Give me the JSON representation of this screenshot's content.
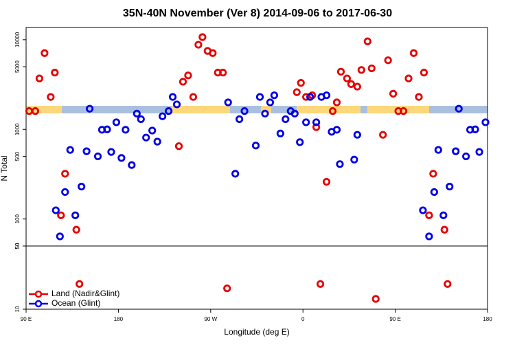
{
  "chart_data": [
    {
      "type": "scatter",
      "title": "35N-40N November (Ver 8)   2014-09-06 to 2017-06-30",
      "y_label": "N Total",
      "log": true,
      "xlim": [
        90,
        540
      ],
      "ylim": [
        50,
        13700
      ],
      "yticks": [
        50,
        100,
        500,
        1000,
        5000,
        10000
      ],
      "series": [
        {
          "color": "#e60000",
          "x": [
            93,
            99,
            103,
            108,
            114,
            118,
            124,
            128,
            139,
            239,
            243,
            248,
            253,
            258,
            262,
            267,
            272,
            277,
            282,
            354,
            358,
            363,
            369,
            373,
            383,
            389,
            393,
            397,
            403,
            407,
            413,
            417,
            423,
            427,
            438,
            443,
            448,
            453,
            458,
            463,
            468,
            473,
            478,
            483,
            487,
            498
          ],
          "values": [
            1600,
            1600,
            3700,
            7100,
            2300,
            4300,
            110,
            320,
            76,
            650,
            3400,
            4000,
            2300,
            8800,
            10700,
            7500,
            7100,
            4300,
            4300,
            2600,
            3300,
            2300,
            2400,
            1060,
            260,
            1600,
            2000,
            4400,
            3700,
            3200,
            3000,
            4600,
            9600,
            4800,
            870,
            5900,
            2500,
            1600,
            1600,
            3700,
            7100,
            2300,
            4300,
            110,
            320,
            76
          ]
        },
        {
          "color": "#0000e6",
          "x": [
            119,
            123,
            128,
            133,
            138,
            144,
            149,
            152,
            160,
            164,
            169,
            173,
            178,
            183,
            187,
            193,
            198,
            202,
            207,
            213,
            218,
            223,
            229,
            233,
            237,
            287,
            294,
            298,
            303,
            314,
            318,
            323,
            328,
            332,
            338,
            343,
            348,
            352,
            357,
            363,
            367,
            373,
            378,
            383,
            388,
            393,
            396,
            410,
            413,
            477,
            483,
            488,
            492,
            497,
            503,
            509,
            512,
            519,
            523,
            528,
            532,
            538
          ],
          "values": [
            125,
            64,
            200,
            590,
            110,
            230,
            570,
            1700,
            500,
            990,
            1000,
            560,
            1200,
            480,
            990,
            400,
            1500,
            1300,
            810,
            970,
            730,
            1400,
            1600,
            2300,
            1900,
            2000,
            320,
            1300,
            1600,
            660,
            2300,
            1500,
            2000,
            2400,
            900,
            1300,
            1600,
            1500,
            720,
            1200,
            2300,
            1200,
            2300,
            2400,
            940,
            990,
            410,
            460,
            870,
            125,
            64,
            200,
            590,
            110,
            230,
            570,
            1700,
            500,
            990,
            1000,
            560,
            1200
          ]
        }
      ]
    },
    {
      "type": "scatter",
      "x_label": "Longitude (deg E)",
      "log": true,
      "legend": "bottom-left",
      "xlim": [
        90,
        540
      ],
      "ylim": [
        10,
        50
      ],
      "yticks": [
        10,
        50
      ],
      "xticks": [
        {
          "value": 90,
          "label": "90 E"
        },
        180,
        {
          "value": 270,
          "label": "90 W"
        },
        {
          "value": 360,
          "label": "0"
        },
        {
          "value": 450,
          "label": "90 E"
        },
        {
          "value": 540,
          "label": "180"
        }
      ],
      "series": [
        {
          "name": "Land (Nadir&Glint)",
          "color": "#e60000",
          "x": [
            142,
            286,
            377,
            431,
            501
          ],
          "values": [
            19,
            17,
            19,
            13,
            19
          ]
        },
        {
          "name": "Ocean (Glint)",
          "color": "#0000e6",
          "x": [],
          "values": []
        }
      ]
    }
  ]
}
